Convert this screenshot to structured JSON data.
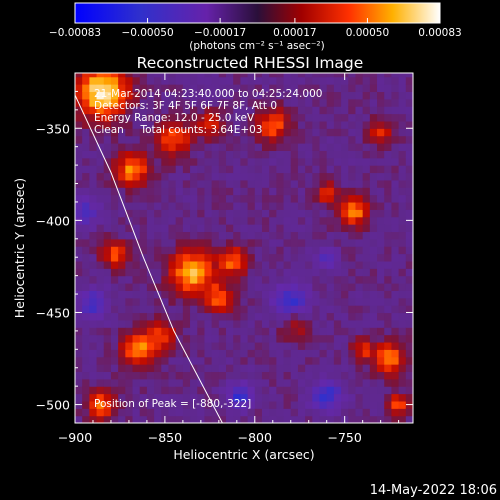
{
  "chart_data": {
    "type": "heatmap",
    "title": "Reconstructed RHESSI Image",
    "xlabel": "Heliocentric X (arcsec)",
    "ylabel": "Heliocentric Y (arcsec)",
    "xlim": [
      -900,
      -712
    ],
    "ylim": [
      -510,
      -320
    ],
    "x_ticks": [
      -900,
      -850,
      -800,
      -750
    ],
    "x_tick_labels": [
      "−900",
      "−850",
      "−800",
      "−750"
    ],
    "y_ticks": [
      -350,
      -400,
      -450,
      -500
    ],
    "y_tick_labels": [
      "−350",
      "−400",
      "−450",
      "−500"
    ],
    "colorbar": {
      "min": -0.00083,
      "max": 0.00083,
      "tick_values": [
        -0.00083,
        -0.0005,
        -0.00017,
        0.00017,
        0.0005,
        0.00083
      ],
      "tick_labels": [
        "−0.00083",
        "−0.00050",
        "−0.00017",
        "0.00017",
        "0.00050",
        "0.00083"
      ],
      "units_label": "(photons cm⁻² s⁻¹ asec⁻²)"
    },
    "annotations": [
      "21-Mar-2014 04:23:40.000 to 04:25:24.000",
      "Detectors: 3F 4F 5F 6F 7F 8F, Att 0",
      "Energy Range: 12.0 - 25.0 keV",
      "Clean     Total counts: 3.64E+03"
    ],
    "peak_label": "Position of Peak = [-880,-322]",
    "peak_position": [
      -880,
      -322
    ],
    "limb_curve": [
      [
        -900,
        -332
      ],
      [
        -880,
        -374
      ],
      [
        -862,
        -420
      ],
      [
        -845,
        -460
      ],
      [
        -818,
        -510
      ]
    ],
    "hotspots": [
      [
        -885,
        -330,
        14,
        1.0
      ],
      [
        -868,
        -372,
        9,
        0.72
      ],
      [
        -845,
        -355,
        10,
        0.55
      ],
      [
        -825,
        -348,
        7,
        0.5
      ],
      [
        -790,
        -348,
        9,
        0.6
      ],
      [
        -730,
        -352,
        7,
        0.45
      ],
      [
        -745,
        -395,
        8,
        0.7
      ],
      [
        -878,
        -418,
        7,
        0.6
      ],
      [
        -835,
        -428,
        12,
        0.82
      ],
      [
        -812,
        -422,
        8,
        0.6
      ],
      [
        -820,
        -442,
        8,
        0.55
      ],
      [
        -852,
        -462,
        8,
        0.5
      ],
      [
        -865,
        -470,
        9,
        0.75
      ],
      [
        -885,
        -500,
        8,
        0.6
      ],
      [
        -778,
        -455,
        8,
        0.45
      ],
      [
        -725,
        -475,
        9,
        0.65
      ],
      [
        -740,
        -470,
        6,
        0.45
      ],
      [
        -720,
        -500,
        6,
        0.55
      ],
      [
        -760,
        -385,
        6,
        0.45
      ]
    ],
    "coldspots": [
      [
        -780,
        -445,
        10,
        -0.6
      ],
      [
        -760,
        -495,
        9,
        -0.55
      ],
      [
        -808,
        -495,
        7,
        -0.6
      ],
      [
        -895,
        -395,
        8,
        -0.45
      ],
      [
        -890,
        -445,
        8,
        -0.5
      ],
      [
        -760,
        -420,
        6,
        -0.4
      ]
    ]
  },
  "footer": {
    "timestamp": "14-May-2022 18:06"
  }
}
